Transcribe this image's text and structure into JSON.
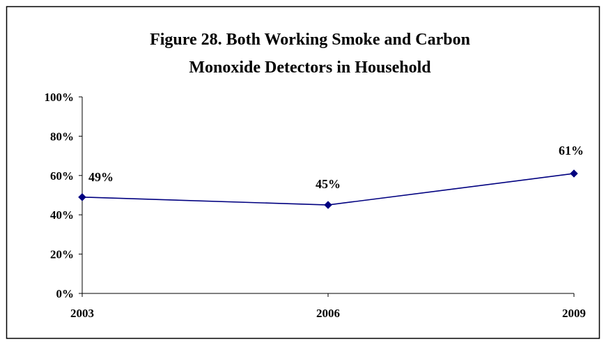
{
  "chart_data": {
    "type": "line",
    "title_lines": [
      "Figure 28. Both Working Smoke and Carbon",
      "Monoxide Detectors in Household"
    ],
    "xlabel": "",
    "ylabel": "",
    "categories": [
      "2003",
      "2006",
      "2009"
    ],
    "series": [
      {
        "values": [
          49,
          45,
          61
        ],
        "data_labels": [
          "49%",
          "45%",
          "61%"
        ]
      }
    ],
    "y_ticks": [
      0,
      20,
      40,
      60,
      80,
      100
    ],
    "y_tick_labels": [
      "0%",
      "20%",
      "40%",
      "60%",
      "80%",
      "100%"
    ],
    "ylim": [
      0,
      100
    ],
    "grid": false,
    "legend": "none",
    "colors": {
      "line": "#000080",
      "marker": "#000080",
      "axis": "#000000",
      "frame": "#000000"
    }
  }
}
